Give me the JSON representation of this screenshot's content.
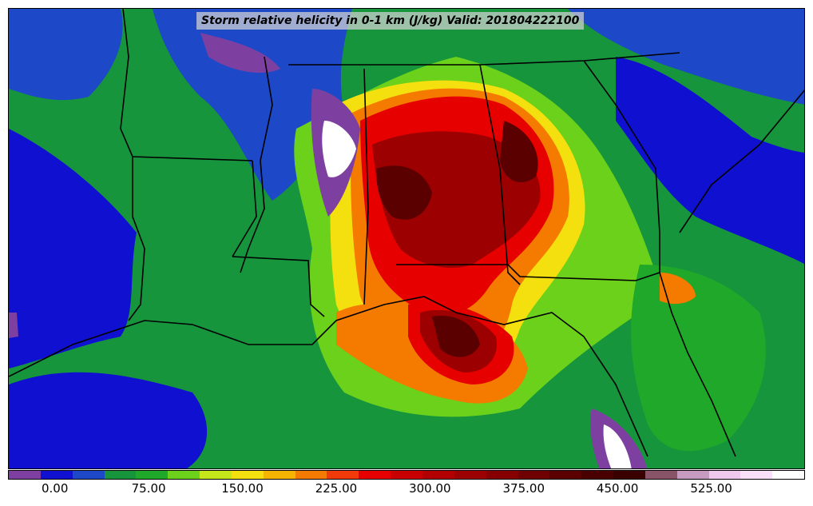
{
  "title": "Storm relative helicity in 0-1 km (J/kg) Valid: 201804222100",
  "colorbar": {
    "colors": [
      "#7e40a0",
      "#1010d0",
      "#1d49c8",
      "#16953d",
      "#1fa82a",
      "#6cd11a",
      "#c4e61a",
      "#f5e00f",
      "#f5b400",
      "#f57a00",
      "#f03a0a",
      "#e60000",
      "#c80000",
      "#b20000",
      "#9c0000",
      "#860000",
      "#700000",
      "#5a0000",
      "#4a0000",
      "#3a0000",
      "#8a5468",
      "#c79ac0",
      "#efc8ee",
      "#f9dff7",
      "#ffffff"
    ],
    "tick_labels": [
      "0.00",
      "75.00",
      "150.00",
      "225.00",
      "300.00",
      "375.00",
      "450.00",
      "525.00"
    ],
    "tick_values": [
      0,
      75,
      150,
      225,
      300,
      375,
      450,
      525
    ],
    "range": [
      -37.5,
      600
    ]
  },
  "map_colors": {
    "background": "#16953d",
    "low": "#1010d0",
    "mid": "#1d49c8",
    "green": "#1fa82a",
    "lightgreen": "#6cd11a",
    "yellow": "#f5e00f",
    "orange": "#f57a00",
    "red": "#e60000",
    "darkred": "#9c0000",
    "maroon": "#5a0000",
    "purple": "#7e40a0",
    "white": "#ffffff",
    "boundary": "#000000"
  }
}
